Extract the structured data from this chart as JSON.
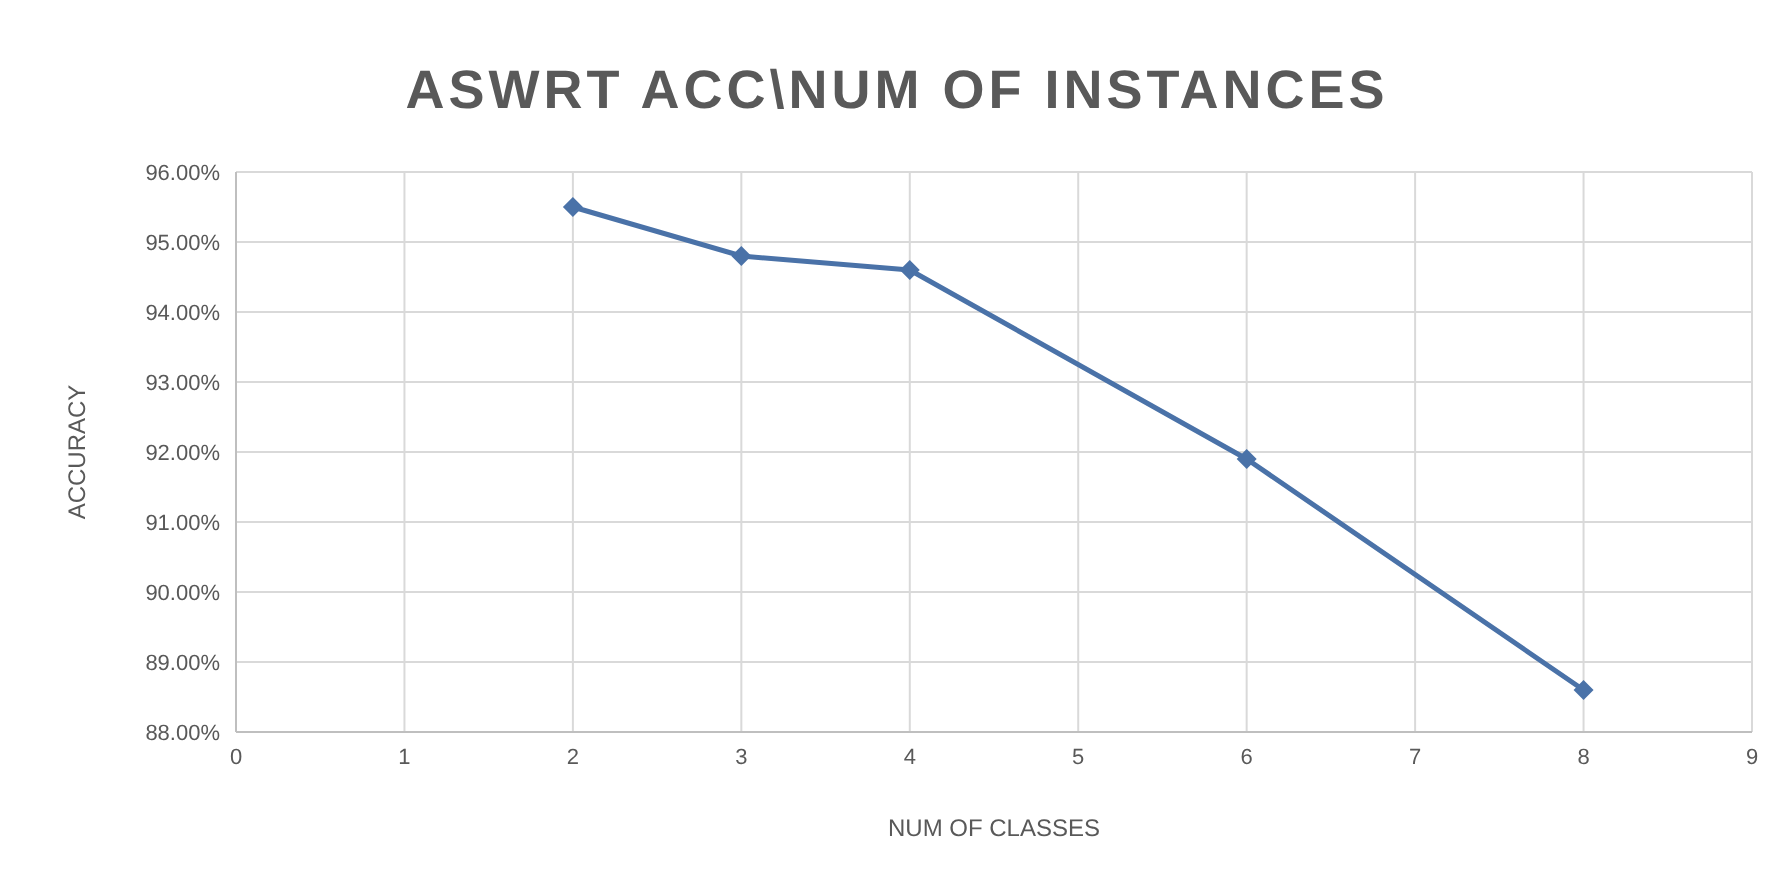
{
  "chart_data": {
    "type": "line",
    "title": "ASWRT ACC\\NUM OF INSTANCES",
    "xlabel": "NUM OF CLASSES",
    "ylabel": "ACCURACY",
    "x": [
      2,
      3,
      4,
      6,
      8
    ],
    "series": [
      {
        "color": "#4a72a8",
        "values": [
          95.5,
          94.8,
          94.6,
          91.9,
          88.6
        ]
      }
    ],
    "xlim": [
      0,
      9
    ],
    "xticks": [
      0,
      1,
      2,
      3,
      4,
      5,
      6,
      7,
      8,
      9
    ],
    "ylim": [
      88,
      96
    ],
    "yticks": [
      {
        "value": 88,
        "label": "88.00%"
      },
      {
        "value": 89,
        "label": "89.00%"
      },
      {
        "value": 90,
        "label": "90.00%"
      },
      {
        "value": 91,
        "label": "91.00%"
      },
      {
        "value": 92,
        "label": "92.00%"
      },
      {
        "value": 93,
        "label": "93.00%"
      },
      {
        "value": 94,
        "label": "94.00%"
      },
      {
        "value": 95,
        "label": "95.00%"
      },
      {
        "value": 96,
        "label": "96.00%"
      }
    ],
    "grid": true,
    "marker": "diamond",
    "line_style": "solid"
  }
}
